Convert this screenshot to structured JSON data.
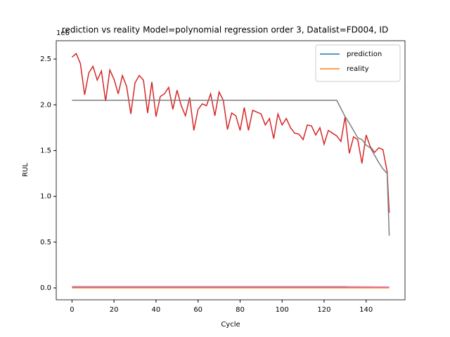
{
  "chart_data": {
    "type": "line",
    "title": "rediction vs reality Model=polynomial regression order 3, Datalist=FD004, ID",
    "y_offset_label": "1e6",
    "xlabel": "Cycle",
    "ylabel": "RUL",
    "x": [
      0,
      2,
      4,
      6,
      8,
      10,
      12,
      14,
      16,
      18,
      20,
      22,
      24,
      26,
      28,
      30,
      32,
      34,
      36,
      38,
      40,
      42,
      44,
      46,
      48,
      50,
      52,
      54,
      56,
      58,
      60,
      62,
      64,
      66,
      68,
      70,
      72,
      74,
      76,
      78,
      80,
      82,
      84,
      86,
      88,
      90,
      92,
      94,
      96,
      98,
      100,
      102,
      104,
      106,
      108,
      110,
      112,
      114,
      116,
      118,
      120,
      122,
      124,
      126,
      128,
      130,
      132,
      134,
      136,
      138,
      140,
      142,
      144,
      146,
      148,
      150,
      151
    ],
    "series": [
      {
        "color": "#d62728",
        "values": [
          2.52,
          2.56,
          2.45,
          2.11,
          2.35,
          2.42,
          2.27,
          2.37,
          2.04,
          2.38,
          2.28,
          2.12,
          2.32,
          2.2,
          1.9,
          2.24,
          2.32,
          2.27,
          1.91,
          2.25,
          1.87,
          2.09,
          2.12,
          2.19,
          1.95,
          2.16,
          1.99,
          1.88,
          2.08,
          1.72,
          1.95,
          2.01,
          1.99,
          2.12,
          1.88,
          2.14,
          2.05,
          1.73,
          1.91,
          1.88,
          1.72,
          1.97,
          1.72,
          1.94,
          1.92,
          1.9,
          1.78,
          1.85,
          1.63,
          1.9,
          1.78,
          1.85,
          1.75,
          1.69,
          1.68,
          1.62,
          1.78,
          1.77,
          1.67,
          1.75,
          1.57,
          1.72,
          1.69,
          1.66,
          1.6,
          1.87,
          1.47,
          1.65,
          1.62,
          1.36,
          1.67,
          1.54,
          1.48,
          1.53,
          1.51,
          1.27,
          0.82
        ]
      },
      {
        "color": "#7f7f7f",
        "values": [
          2.05,
          2.05,
          2.05,
          2.05,
          2.05,
          2.05,
          2.05,
          2.05,
          2.05,
          2.05,
          2.05,
          2.05,
          2.05,
          2.05,
          2.05,
          2.05,
          2.05,
          2.05,
          2.05,
          2.05,
          2.05,
          2.05,
          2.05,
          2.05,
          2.05,
          2.05,
          2.05,
          2.05,
          2.05,
          2.05,
          2.05,
          2.05,
          2.05,
          2.05,
          2.05,
          2.05,
          2.05,
          2.05,
          2.05,
          2.05,
          2.05,
          2.05,
          2.05,
          2.05,
          2.05,
          2.05,
          2.05,
          2.05,
          2.05,
          2.05,
          2.05,
          2.05,
          2.05,
          2.05,
          2.05,
          2.05,
          2.05,
          2.05,
          2.05,
          2.05,
          2.05,
          2.05,
          2.05,
          2.05,
          1.96,
          1.87,
          1.8,
          1.72,
          1.64,
          1.62,
          1.56,
          1.53,
          1.45,
          1.37,
          1.3,
          1.25,
          0.57
        ]
      },
      {
        "name": "prediction",
        "color": "#1f77b4",
        "values": [
          0.01,
          0.01,
          0.01,
          0.01,
          0.01,
          0.01,
          0.01,
          0.01,
          0.01,
          0.01,
          0.01,
          0.01,
          0.01,
          0.01,
          0.01,
          0.01,
          0.01,
          0.01,
          0.01,
          0.01,
          0.01,
          0.01,
          0.01,
          0.01,
          0.01,
          0.01,
          0.01,
          0.01,
          0.01,
          0.01,
          0.01,
          0.01,
          0.01,
          0.01,
          0.01,
          0.01,
          0.01,
          0.01,
          0.01,
          0.01,
          0.01,
          0.01,
          0.01,
          0.01,
          0.01,
          0.01,
          0.01,
          0.01,
          0.01,
          0.01,
          0.01,
          0.01,
          0.01,
          0.01,
          0.01,
          0.01,
          0.01,
          0.01,
          0.01,
          0.01,
          0.01,
          0.01,
          0.01,
          0.01,
          0.01,
          0.01,
          0.01,
          0.01,
          0.01,
          0.01,
          0.01,
          0.01,
          0.01,
          0.01,
          0.01,
          0.01,
          0.01
        ]
      },
      {
        "name": "reality",
        "color": "#ff7f0e",
        "values": [
          0,
          0,
          0,
          0,
          0,
          0,
          0,
          0,
          0,
          0,
          0,
          0,
          0,
          0,
          0,
          0,
          0,
          0,
          0,
          0,
          0,
          0,
          0,
          0,
          0,
          0,
          0,
          0,
          0,
          0,
          0,
          0,
          0,
          0,
          0,
          0,
          0,
          0,
          0,
          0,
          0,
          0,
          0,
          0,
          0,
          0,
          0,
          0,
          0,
          0,
          0,
          0,
          0,
          0,
          0,
          0,
          0,
          0,
          0,
          0,
          0,
          0,
          0,
          0,
          0,
          0,
          0,
          0,
          0,
          0,
          0,
          0,
          0,
          0,
          0,
          0,
          0
        ]
      },
      {
        "color": "#e377c2",
        "values": [
          0.015,
          0.015,
          0.015,
          0.015,
          0.015,
          0.015,
          0.015,
          0.015,
          0.015,
          0.015,
          0.015,
          0.015,
          0.015,
          0.015,
          0.015,
          0.015,
          0.015,
          0.015,
          0.015,
          0.015,
          0.015,
          0.015,
          0.015,
          0.015,
          0.015,
          0.015,
          0.015,
          0.015,
          0.015,
          0.015,
          0.015,
          0.015,
          0.015,
          0.015,
          0.015,
          0.015,
          0.015,
          0.015,
          0.015,
          0.015,
          0.015,
          0.015,
          0.015,
          0.015,
          0.015,
          0.015,
          0.015,
          0.015,
          0.015,
          0.015,
          0.015,
          0.015,
          0.015,
          0.015,
          0.015,
          0.015,
          0.015,
          0.015,
          0.015,
          0.015,
          0.015,
          0.015,
          0.015,
          0.015,
          0.015,
          0.015,
          0.013,
          0.013,
          0.013,
          0.012,
          0.012,
          0.012,
          0.011,
          0.011,
          0.011,
          0.01,
          0.01
        ]
      }
    ],
    "xlim": [
      -7.5,
      158.5
    ],
    "ylim": [
      -0.13,
      2.7
    ],
    "xticks": [
      0,
      20,
      40,
      60,
      80,
      100,
      120,
      140
    ],
    "yticks": [
      {
        "value": 0,
        "label": "0.0"
      },
      {
        "value": 0.5,
        "label": "0.5"
      },
      {
        "value": 1,
        "label": "1.0"
      },
      {
        "value": 1.5,
        "label": "1.5"
      },
      {
        "value": 2,
        "label": "2.0"
      },
      {
        "value": 2.5,
        "label": "2.5"
      }
    ],
    "legend": "upper right"
  }
}
